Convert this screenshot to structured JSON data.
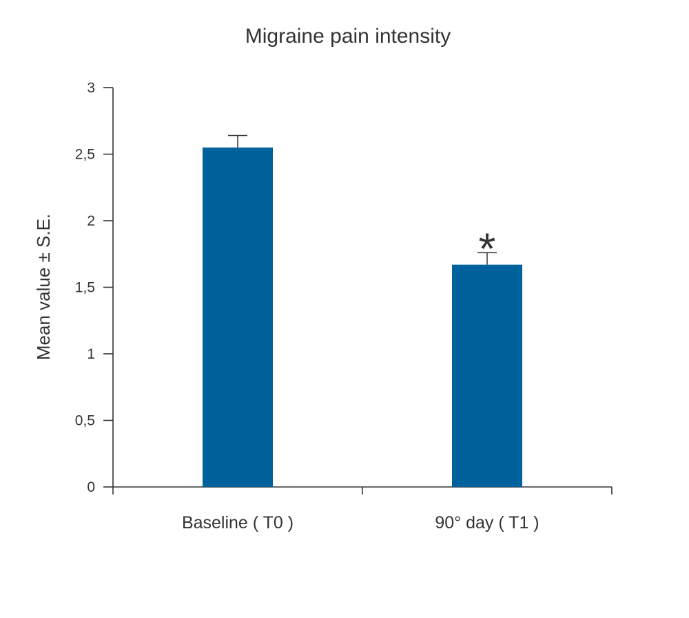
{
  "chart_data": {
    "type": "bar",
    "title": "Migraine pain intensity",
    "ylabel": "Mean value ± S.E.",
    "xlabel": "",
    "categories": [
      "Baseline ( T0 )",
      "90° day ( T1 )"
    ],
    "values": [
      2.55,
      1.67
    ],
    "error": [
      0.09,
      0.09
    ],
    "significance": [
      "",
      "*"
    ],
    "ylim": [
      0,
      3
    ],
    "yticks": [
      0,
      0.5,
      1,
      1.5,
      2,
      2.5,
      3
    ],
    "ytick_labels": [
      "0",
      "0,5",
      "1",
      "1,5",
      "2",
      "2,5",
      "3"
    ],
    "grid": false,
    "bar_color": "#00629c",
    "axis_color": "#333333"
  }
}
